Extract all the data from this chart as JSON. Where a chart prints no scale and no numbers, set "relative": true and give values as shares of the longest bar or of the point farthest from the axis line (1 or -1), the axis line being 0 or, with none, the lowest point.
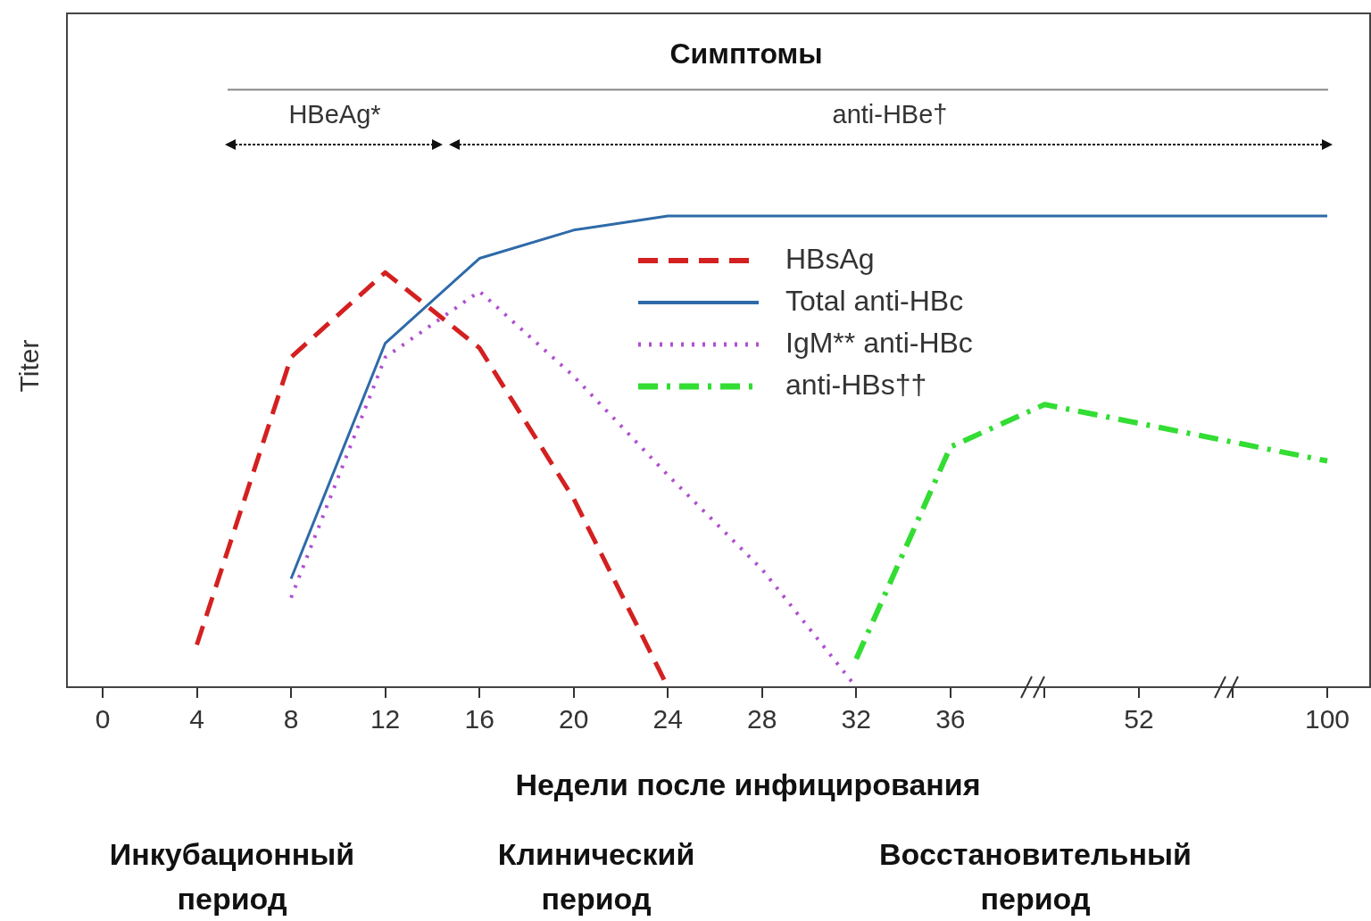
{
  "chart_data": {
    "type": "line",
    "relative": true,
    "xlabel": "Недели после инфицирования",
    "ylabel": "Titer",
    "categories": [
      "0",
      "4",
      "8",
      "12",
      "16",
      "20",
      "24",
      "28",
      "32",
      "36",
      null,
      "52",
      null,
      "100"
    ],
    "legend": "top right",
    "marker": "none",
    "series": [
      {
        "name": "HBsAg",
        "color": "#d42020",
        "line_style": "dashed",
        "values": [
          null,
          0.09,
          0.7,
          0.88,
          0.72,
          0.4,
          0,
          null,
          null,
          null,
          null,
          null,
          null,
          null
        ]
      },
      {
        "name": "Total anti-HBc",
        "color": "#2e6aa8",
        "line_style": "solid",
        "values": [
          null,
          null,
          0.23,
          0.73,
          0.91,
          0.97,
          1,
          1,
          1,
          1,
          1,
          1,
          1,
          1
        ]
      },
      {
        "name": "IgM** anti-HBc",
        "color": "#b050d0",
        "line_style": "dotted",
        "values": [
          null,
          null,
          0.19,
          0.7,
          0.84,
          0.66,
          0.45,
          0.25,
          0,
          null,
          null,
          null,
          null,
          null
        ]
      },
      {
        "name": "anti-HBs††",
        "color": "#33dd33",
        "line_style": "dashdot",
        "values": [
          null,
          null,
          null,
          null,
          null,
          null,
          null,
          null,
          0.06,
          0.51,
          0.6,
          0.56,
          0.52,
          0.48
        ]
      }
    ],
    "annotations": [
      "Симптомы",
      "HBeAg*",
      "anti-HBe†",
      "Инкубационный период",
      "Клинический период",
      "Восстановительный период"
    ]
  }
}
